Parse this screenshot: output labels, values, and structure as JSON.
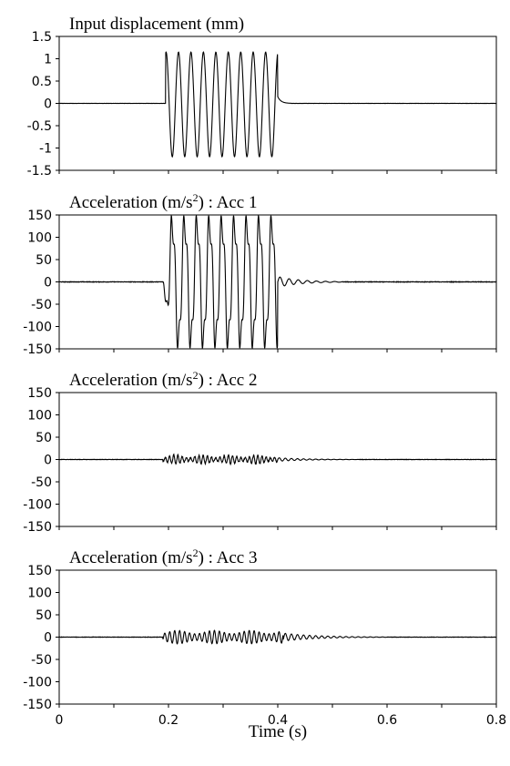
{
  "chart_data": [
    {
      "type": "line",
      "title": "Input displacement (mm)",
      "xlim": [
        0,
        0.8
      ],
      "ylim": [
        -1.5,
        1.5
      ],
      "yticks": [
        "1.5",
        "1",
        "0.5",
        "0",
        "-0.5",
        "-1",
        "-1.5"
      ],
      "series": [
        {
          "values_description": "approximately 0 from 0 to 0.195 s; ~10 Hz... sinusoid of amplitude ~1.15 (peaks 1.17, troughs -1.2) from 0.195 s to 0.40 s (9 cycles); small step ~0.15 at 0.40 s decaying to 0 by 0.42 s; 0 thereafter",
          "x": [
            0,
            0.195,
            0.2,
            0.4,
            0.402,
            0.42,
            0.8
          ],
          "y": [
            0,
            0,
            1.05,
            0,
            0.15,
            0.02,
            0
          ]
        }
      ]
    },
    {
      "type": "line",
      "title_main": "Acceleration (m/s",
      "title_sup": "2",
      "title_tail": ") : Acc 1",
      "xlim": [
        0,
        0.8
      ],
      "ylim": [
        -150,
        150
      ],
      "yticks": [
        "150",
        "100",
        "50",
        "0",
        "-50",
        "-100",
        "-150"
      ],
      "series": [
        {
          "x": [
            0,
            0.19,
            0.2,
            0.4,
            0.41,
            0.5,
            0.8
          ],
          "y": [
            0,
            0,
            150,
            -150,
            12,
            0,
            0
          ]
        }
      ]
    },
    {
      "type": "line",
      "title_main": "Acceleration (m/s",
      "title_sup": "2",
      "title_tail": ") : Acc 2",
      "xlim": [
        0,
        0.8
      ],
      "ylim": [
        -150,
        150
      ],
      "yticks": [
        "150",
        "100",
        "50",
        "0",
        "-50",
        "-100",
        "-150"
      ],
      "series": [
        {
          "x": [
            0,
            0.19,
            0.2,
            0.4,
            0.52,
            0.8
          ],
          "y": [
            0,
            0,
            12,
            -12,
            2,
            0
          ]
        }
      ]
    },
    {
      "type": "line",
      "title_main": "Acceleration (m/s",
      "title_sup": "2",
      "title_tail": ") : Acc 3",
      "xlim": [
        0,
        0.8
      ],
      "ylim": [
        -150,
        150
      ],
      "yticks": [
        "150",
        "100",
        "50",
        "0",
        "-50",
        "-100",
        "-150"
      ],
      "xticks": [
        "0",
        "0.2",
        "0.4",
        "0.6",
        "0.8"
      ],
      "xlabel": "Time (s)",
      "series": [
        {
          "x": [
            0,
            0.19,
            0.2,
            0.4,
            0.55,
            0.8
          ],
          "y": [
            0,
            0,
            18,
            -18,
            2,
            0
          ]
        }
      ]
    }
  ]
}
